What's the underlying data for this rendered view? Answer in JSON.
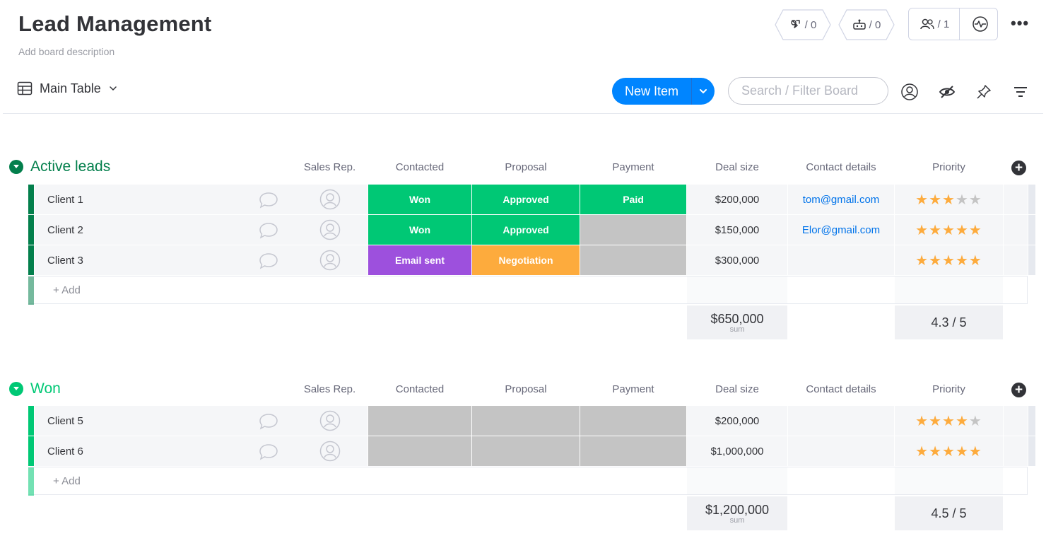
{
  "board": {
    "title": "Lead Management",
    "description": "Add board description"
  },
  "header": {
    "automations_count": "/ 0",
    "integrations_count": "/ 0",
    "members_count": "/ 1",
    "more_label": "•••"
  },
  "toolbar": {
    "view_label": "Main Table",
    "new_item_label": "New Item",
    "search_placeholder": "Search / Filter Board"
  },
  "columns": {
    "sales_rep": "Sales Rep.",
    "contacted": "Contacted",
    "proposal": "Proposal",
    "payment": "Payment",
    "deal_size": "Deal size",
    "contact_details": "Contact details",
    "priority": "Priority"
  },
  "colors": {
    "active_group": "#037f4c",
    "won_group": "#00c875",
    "won_status": "#00c875",
    "email_sent": "#9d50dd",
    "negotiation": "#fdab3d",
    "empty_status": "#c4c4c4",
    "primary": "#0085ff",
    "star_on": "#fdab3d",
    "star_off": "#c4c4c4"
  },
  "groups": [
    {
      "title": "Active leads",
      "add_label": "+ Add",
      "rows": [
        {
          "name": "Client 1",
          "contacted": "Won",
          "proposal": "Approved",
          "payment": "Paid",
          "deal": "$200,000",
          "email": "tom@gmail.com",
          "stars": 3
        },
        {
          "name": "Client 2",
          "contacted": "Won",
          "proposal": "Approved",
          "payment": "",
          "deal": "$150,000",
          "email": "Elor@gmail.com",
          "stars": 5
        },
        {
          "name": "Client 3",
          "contacted": "Email sent",
          "proposal": "Negotiation",
          "payment": "",
          "deal": "$300,000",
          "email": "",
          "stars": 5
        }
      ],
      "sum_value": "$650,000",
      "sum_label": "sum",
      "rating": "4.3 / 5"
    },
    {
      "title": "Won",
      "add_label": "+ Add",
      "rows": [
        {
          "name": "Client 5",
          "contacted": "",
          "proposal": "",
          "payment": "",
          "deal": "$200,000",
          "email": "",
          "stars": 4
        },
        {
          "name": "Client 6",
          "contacted": "",
          "proposal": "",
          "payment": "",
          "deal": "$1,000,000",
          "email": "",
          "stars": 5
        }
      ],
      "sum_value": "$1,200,000",
      "sum_label": "sum",
      "rating": "4.5 / 5"
    }
  ]
}
